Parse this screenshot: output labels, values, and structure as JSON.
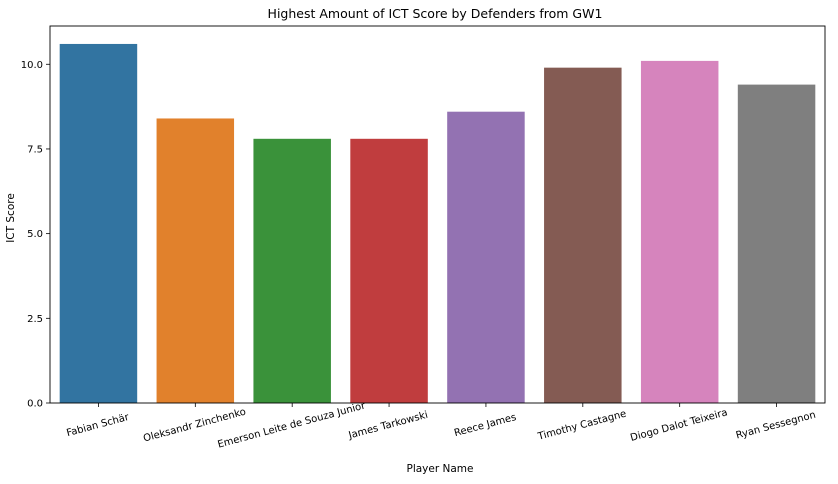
{
  "chart_data": {
    "type": "bar",
    "title": "Highest Amount of ICT Score by Defenders from GW1",
    "xlabel": "Player Name",
    "ylabel": "ICT Score",
    "categories": [
      "Fabian Schär",
      "Oleksandr Zinchenko",
      "Emerson Leite de Souza Junior",
      "James Tarkowski",
      "Reece James",
      "Timothy Castagne",
      "Diogo Dalot Teixeira",
      "Ryan Sessegnon"
    ],
    "values": [
      10.6,
      8.4,
      7.8,
      7.8,
      8.6,
      9.9,
      10.1,
      9.4
    ],
    "colors": [
      "#3274a1",
      "#e1812c",
      "#3a923a",
      "#c03d3e",
      "#9372b2",
      "#845b53",
      "#d684bd",
      "#7f7f7f"
    ],
    "ylim": [
      0,
      11.13
    ],
    "yticks": [
      "0.0",
      "2.5",
      "5.0",
      "7.5",
      "10.0"
    ],
    "grid": false,
    "legend": "none"
  }
}
